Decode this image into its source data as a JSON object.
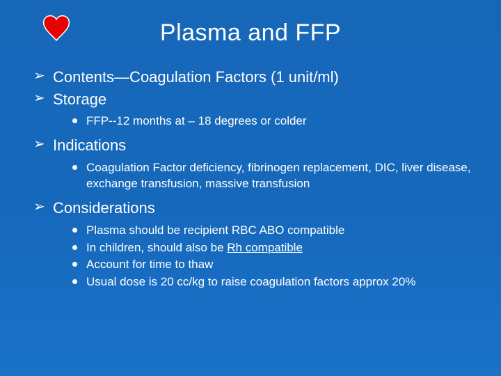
{
  "colors": {
    "background_top": "#1767b9",
    "background_bottom": "#1a73c9",
    "text": "#ffffff",
    "heart_fill": "#e60000",
    "heart_stroke": "#ffffff"
  },
  "typography": {
    "title_fontsize": 34,
    "level1_fontsize": 22,
    "level2_fontsize": 17,
    "font_family": "Arial"
  },
  "bullets": {
    "level1_marker": "➢",
    "level2_marker": "filled-circle"
  },
  "title": "Plasma and FFP",
  "items": [
    {
      "text": "Contents—Coagulation Factors (1 unit/ml)"
    },
    {
      "text": "Storage",
      "sub": [
        {
          "text": "FFP--12 months at – 18 degrees or colder"
        }
      ]
    },
    {
      "text": "Indications",
      "sub": [
        {
          "text": "Coagulation Factor deficiency, fibrinogen replacement, DIC, liver disease, exchange transfusion, massive transfusion"
        }
      ]
    },
    {
      "text": "Considerations",
      "sub": [
        {
          "text": "Plasma should be recipient RBC ABO compatible"
        },
        {
          "html": "In children, should also be <span class=\"underline\">Rh compatible</span>"
        },
        {
          "text": "Account for time to thaw"
        },
        {
          "text": "Usual dose is 20 cc/kg to raise coagulation factors approx 20%"
        }
      ]
    }
  ]
}
